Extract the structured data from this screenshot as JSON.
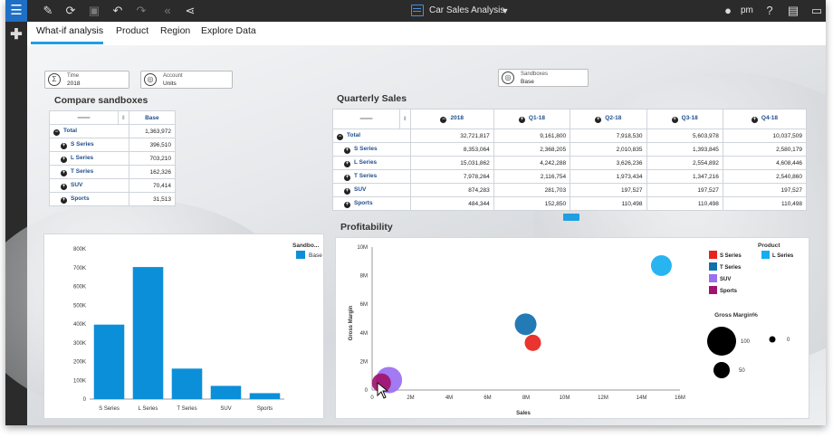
{
  "toolbar": {
    "title": "Car Sales Analysis",
    "user": "pm",
    "icons": [
      "menu-icon",
      "pencil-icon",
      "refresh-icon",
      "save-icon",
      "undo-icon",
      "redo-icon",
      "rewind-icon",
      "share-icon",
      "user-icon",
      "help-icon",
      "image-icon",
      "comment-icon"
    ]
  },
  "tabs": [
    "What-if analysis",
    "Product",
    "Region",
    "Explore Data"
  ],
  "filters": {
    "time": {
      "label": "Time",
      "value": "2018"
    },
    "account": {
      "label": "Account",
      "value": "Units"
    },
    "sandboxes": {
      "label": "Sandboxes",
      "value": "Base"
    }
  },
  "compare": {
    "title": "Compare sandboxes",
    "column": "Base",
    "rows": [
      {
        "label": "Total",
        "value": "1,363,972"
      },
      {
        "label": "S Series",
        "value": "396,510"
      },
      {
        "label": "L Series",
        "value": "703,210"
      },
      {
        "label": "T Series",
        "value": "162,326"
      },
      {
        "label": "SUV",
        "value": "70,414"
      },
      {
        "label": "Sports",
        "value": "31,513"
      }
    ]
  },
  "quarterly": {
    "title": "Quarterly Sales",
    "columns": [
      "2018",
      "Q1-18",
      "Q2-18",
      "Q3-18",
      "Q4-18"
    ],
    "rows": [
      {
        "label": "Total",
        "values": [
          "32,721,817",
          "9,161,800",
          "7,918,530",
          "5,603,978",
          "10,037,509"
        ]
      },
      {
        "label": "S Series",
        "values": [
          "8,353,064",
          "2,368,205",
          "2,010,835",
          "1,393,845",
          "2,580,179"
        ]
      },
      {
        "label": "L Series",
        "values": [
          "15,031,862",
          "4,242,288",
          "3,626,236",
          "2,554,892",
          "4,608,446"
        ]
      },
      {
        "label": "T Series",
        "values": [
          "7,978,264",
          "2,116,754",
          "1,973,434",
          "1,347,216",
          "2,540,860"
        ]
      },
      {
        "label": "SUV",
        "values": [
          "874,283",
          "281,703",
          "197,527",
          "197,527",
          "197,527"
        ]
      },
      {
        "label": "Sports",
        "values": [
          "484,344",
          "152,850",
          "110,498",
          "110,498",
          "110,498"
        ]
      }
    ]
  },
  "profitability": {
    "title": "Profitability",
    "legend_title": "Product",
    "size_title": "Gross Margin%",
    "size_labels": [
      "100",
      "0",
      "50"
    ],
    "xlabel": "Sales",
    "ylabel": "Gross Margin"
  },
  "bar_legend": {
    "title": "Sandbo...",
    "item": "Base"
  },
  "chart_data": [
    {
      "type": "bar",
      "categories": [
        "S Series",
        "L Series",
        "T Series",
        "SUV",
        "Sports"
      ],
      "series": [
        {
          "name": "Base",
          "values": [
            396510,
            703210,
            162326,
            70414,
            31513
          ]
        }
      ],
      "ylim": [
        0,
        800000
      ],
      "yticks": [
        "0",
        "100K",
        "200K",
        "300K",
        "400K",
        "500K",
        "600K",
        "700K",
        "800K"
      ],
      "color": "#0b8fd9",
      "legend": "top-right"
    },
    {
      "type": "scatter",
      "xlim": [
        0,
        16000000
      ],
      "ylim": [
        0,
        10000000
      ],
      "xticks": [
        "0",
        "2M",
        "4M",
        "6M",
        "8M",
        "10M",
        "12M",
        "14M",
        "16M"
      ],
      "yticks": [
        "0",
        "2M",
        "4M",
        "6M",
        "8M",
        "10M"
      ],
      "series": [
        {
          "name": "S Series",
          "color": "#e8231d",
          "x": 8353064,
          "y": 3300000,
          "size": 0.3
        },
        {
          "name": "L Series",
          "color": "#16aef0",
          "x": 15031862,
          "y": 8700000,
          "size": 0.55
        },
        {
          "name": "T Series",
          "color": "#116faf",
          "x": 7978264,
          "y": 4600000,
          "size": 0.6
        },
        {
          "name": "SUV",
          "color": "#9a6ff0",
          "x": 874283,
          "y": 700000,
          "size": 0.85
        },
        {
          "name": "Sports",
          "color": "#a0146e",
          "x": 484344,
          "y": 500000,
          "size": 0.45
        }
      ],
      "legend": "right"
    }
  ]
}
